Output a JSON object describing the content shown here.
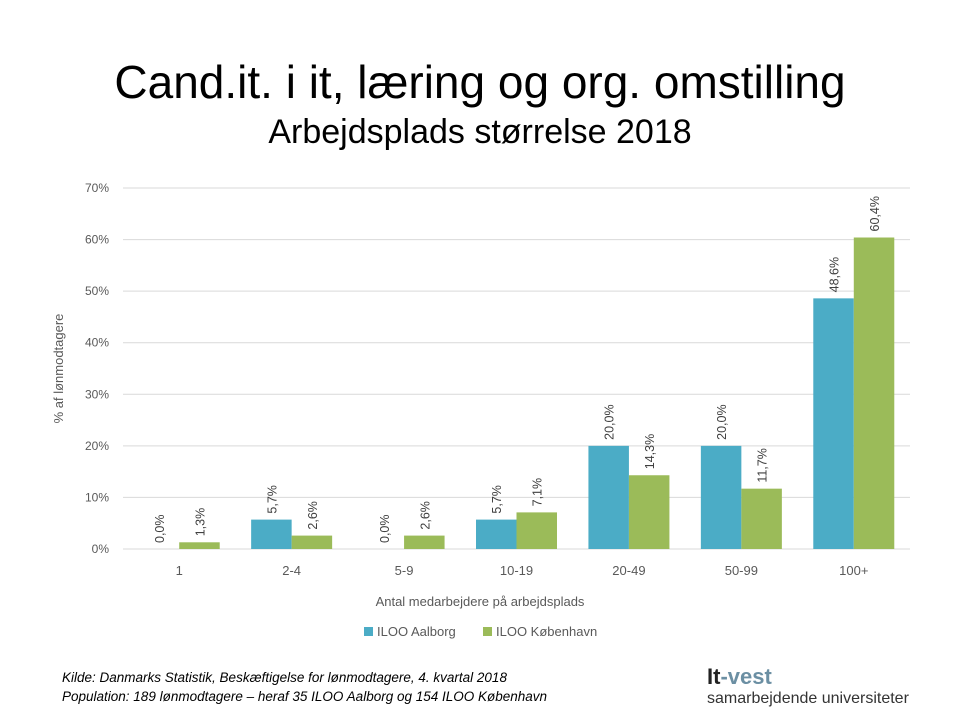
{
  "header": {
    "title": "Cand.it. i it, læring og org. omstilling",
    "subtitle": "Arbejdsplads størrelse 2018"
  },
  "chart_data": {
    "type": "bar",
    "categories": [
      "1",
      "2-4",
      "5-9",
      "10-19",
      "20-49",
      "50-99",
      "100+"
    ],
    "series": [
      {
        "name": "ILOO Aalborg",
        "color": "#4bacc6",
        "values": [
          0.0,
          5.7,
          0.0,
          5.7,
          20.0,
          20.0,
          48.6
        ],
        "labels": [
          "0,0%",
          "5,7%",
          "0,0%",
          "5,7%",
          "20,0%",
          "20,0%",
          "48,6%"
        ]
      },
      {
        "name": "ILOO København",
        "color": "#9bbb59",
        "values": [
          1.3,
          2.6,
          2.6,
          7.1,
          14.3,
          11.7,
          60.4
        ],
        "labels": [
          "1,3%",
          "2,6%",
          "2,6%",
          "7,1%",
          "14,3%",
          "11,7%",
          "60,4%"
        ]
      }
    ],
    "xlabel": "Antal medarbejdere på arbejdsplads",
    "ylabel": "% af lønmodtagere",
    "ylim": [
      0,
      70
    ],
    "yticks": [
      0,
      10,
      20,
      30,
      40,
      50,
      60,
      70
    ],
    "ytick_labels": [
      "0%",
      "10%",
      "20%",
      "30%",
      "40%",
      "50%",
      "60%",
      "70%"
    ],
    "grid": true,
    "legend": "bottom"
  },
  "footer": {
    "source": "Kilde: Danmarks Statistik, Beskæftigelse for lønmodtagere, 4. kvartal 2018",
    "population": "Population: 189 lønmodtagere – heraf 35 ILOO Aalborg og 154 ILOO København",
    "logo_part1": "It",
    "logo_part2": "-vest",
    "logo_tagline": "samarbejdende universiteter"
  }
}
